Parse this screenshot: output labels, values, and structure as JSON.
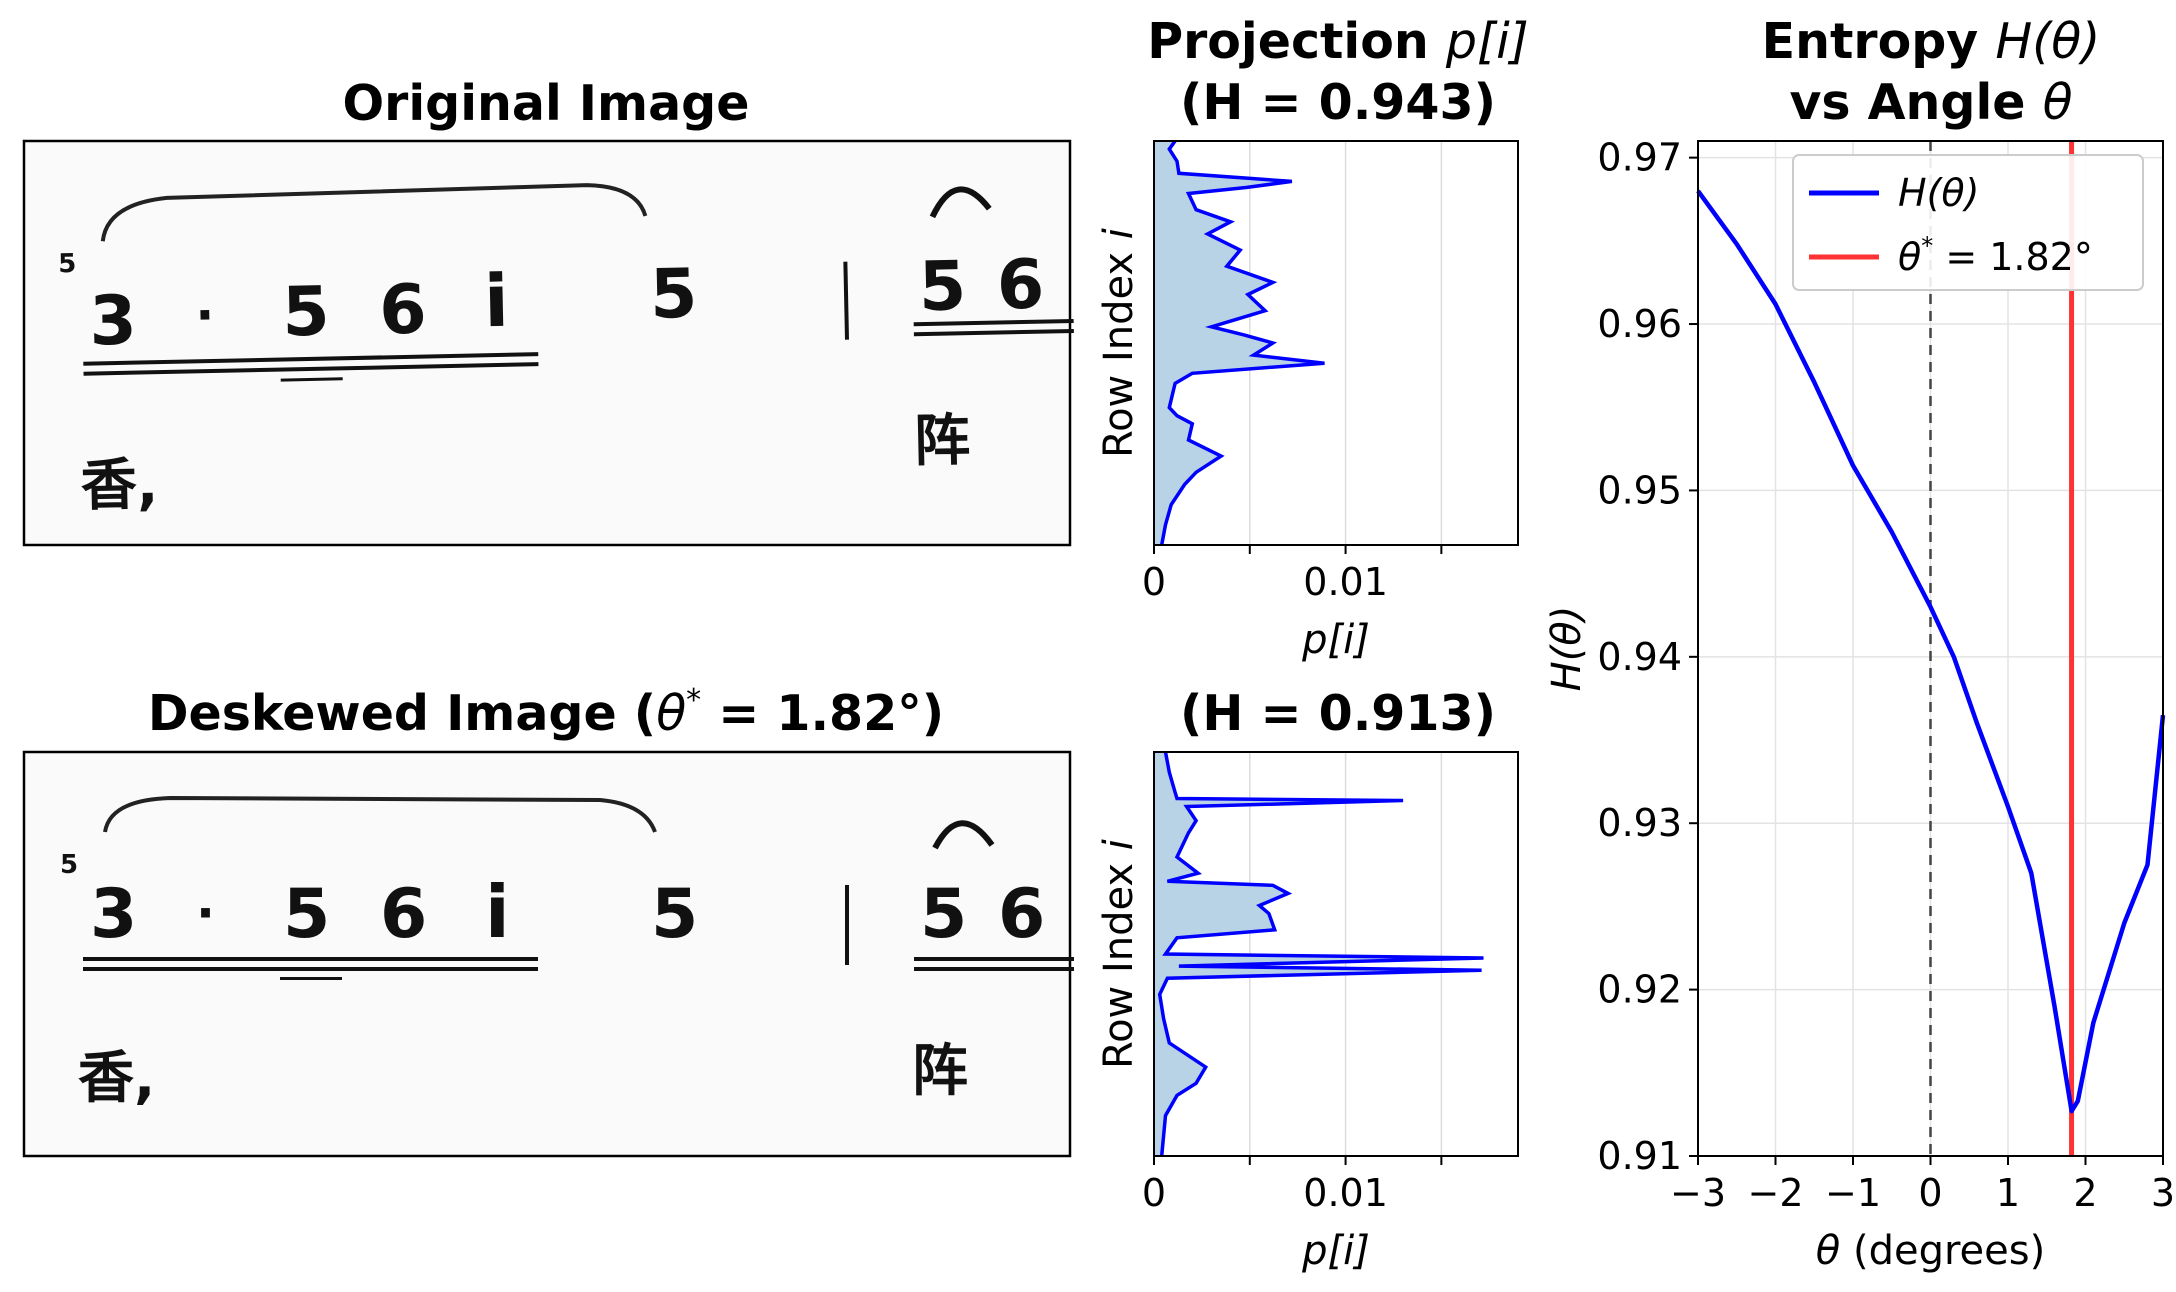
{
  "panels": {
    "original": {
      "title": "Original Image"
    },
    "deskewed": {
      "title_prefix": "Deskewed Image (",
      "title_theta": "θ",
      "title_star": "*",
      "title_suffix": " = 1.82°)"
    },
    "score": {
      "notes_top": [
        "5",
        "3",
        "·",
        "5",
        "6",
        "i",
        "5",
        "5",
        "6"
      ],
      "lyrics": [
        "香,",
        "阵"
      ]
    }
  },
  "chart_data": [
    {
      "type": "area",
      "title_line1_prefix": "Projection ",
      "title_line1_math": "p[i]",
      "title_line2": "(H = 0.943)",
      "xlabel": "p[i]",
      "ylabel": "Row Index i",
      "xticks": [
        "0",
        "0.01"
      ],
      "xlim": [
        0,
        0.019
      ],
      "grid": true,
      "profile": [
        [
          0.0,
          0.0011
        ],
        [
          0.02,
          0.0008
        ],
        [
          0.05,
          0.0012
        ],
        [
          0.08,
          0.0013
        ],
        [
          0.1,
          0.0072
        ],
        [
          0.115,
          0.0048
        ],
        [
          0.13,
          0.0018
        ],
        [
          0.17,
          0.0022
        ],
        [
          0.2,
          0.004
        ],
        [
          0.23,
          0.0028
        ],
        [
          0.27,
          0.0045
        ],
        [
          0.31,
          0.0038
        ],
        [
          0.35,
          0.0062
        ],
        [
          0.38,
          0.0049
        ],
        [
          0.42,
          0.0058
        ],
        [
          0.46,
          0.003
        ],
        [
          0.48,
          0.0047
        ],
        [
          0.5,
          0.0062
        ],
        [
          0.53,
          0.0052
        ],
        [
          0.55,
          0.0089
        ],
        [
          0.575,
          0.002
        ],
        [
          0.6,
          0.0011
        ],
        [
          0.66,
          0.0008
        ],
        [
          0.68,
          0.0012
        ],
        [
          0.7,
          0.002
        ],
        [
          0.74,
          0.0018
        ],
        [
          0.78,
          0.0035
        ],
        [
          0.82,
          0.0022
        ],
        [
          0.85,
          0.0016
        ],
        [
          0.9,
          0.0009
        ],
        [
          0.95,
          0.0006
        ],
        [
          1.0,
          0.0004
        ]
      ]
    },
    {
      "type": "area",
      "title": "(H = 0.913)",
      "xlabel": "p[i]",
      "ylabel": "Row Index i",
      "xticks": [
        "0",
        "0.01"
      ],
      "xlim": [
        0,
        0.019
      ],
      "grid": true,
      "profile": [
        [
          0.0,
          0.0006
        ],
        [
          0.05,
          0.0008
        ],
        [
          0.1,
          0.0011
        ],
        [
          0.115,
          0.0012
        ],
        [
          0.12,
          0.013
        ],
        [
          0.135,
          0.0017
        ],
        [
          0.17,
          0.0022
        ],
        [
          0.2,
          0.0018
        ],
        [
          0.26,
          0.0012
        ],
        [
          0.3,
          0.0023
        ],
        [
          0.32,
          0.0007
        ],
        [
          0.33,
          0.0062
        ],
        [
          0.35,
          0.007
        ],
        [
          0.38,
          0.0055
        ],
        [
          0.4,
          0.006
        ],
        [
          0.44,
          0.0063
        ],
        [
          0.46,
          0.0012
        ],
        [
          0.5,
          0.0006
        ],
        [
          0.51,
          0.0172
        ],
        [
          0.53,
          0.0013
        ],
        [
          0.54,
          0.0171
        ],
        [
          0.56,
          0.0007
        ],
        [
          0.6,
          0.0003
        ],
        [
          0.66,
          0.0005
        ],
        [
          0.72,
          0.0008
        ],
        [
          0.78,
          0.0027
        ],
        [
          0.82,
          0.0022
        ],
        [
          0.85,
          0.0012
        ],
        [
          0.9,
          0.0006
        ],
        [
          0.95,
          0.0005
        ],
        [
          1.0,
          0.0004
        ]
      ]
    },
    {
      "type": "line",
      "title_line1_prefix": "Entropy ",
      "title_line1_math": "H(θ)",
      "title_line2_prefix": "vs Angle ",
      "title_line2_math": "θ",
      "xlabel_math": "θ",
      "xlabel_text": " (degrees)",
      "ylabel": "H(θ)",
      "xlim": [
        -3,
        3
      ],
      "ylim": [
        0.91,
        0.971
      ],
      "xticks": [
        -3,
        -2,
        -1,
        0,
        1,
        2,
        3
      ],
      "xtick_labels": [
        "−3",
        "−2",
        "−1",
        "0",
        "1",
        "2",
        "3"
      ],
      "yticks": [
        0.91,
        0.92,
        0.93,
        0.94,
        0.95,
        0.96,
        0.97
      ],
      "ytick_labels": [
        "0.91",
        "0.92",
        "0.93",
        "0.94",
        "0.95",
        "0.96",
        "0.97"
      ],
      "grid": true,
      "legend_position": "top-right",
      "series": [
        {
          "name": "H(θ)",
          "color": "#0000ff",
          "x": [
            -3.0,
            -2.5,
            -2.0,
            -1.5,
            -1.0,
            -0.5,
            0.0,
            0.3,
            0.6,
            1.0,
            1.3,
            1.6,
            1.82,
            1.9,
            2.1,
            2.5,
            2.8,
            3.0
          ],
          "y": [
            0.968,
            0.9648,
            0.9612,
            0.9565,
            0.9515,
            0.9475,
            0.943,
            0.94,
            0.936,
            0.931,
            0.927,
            0.919,
            0.9127,
            0.9133,
            0.918,
            0.924,
            0.9275,
            0.9365
          ]
        }
      ],
      "reference_lines": [
        {
          "name": "θ* = 1.82°",
          "x": 1.82,
          "color": "#ff3333",
          "style": "solid"
        },
        {
          "x": 0,
          "color": "#444444",
          "style": "dashed"
        }
      ],
      "legend": [
        {
          "label_math": "H(θ)",
          "color": "#0000ff"
        },
        {
          "label_prefix": "θ",
          "label_sup": "*",
          "label_suffix": " = 1.82°",
          "color": "#ff3333"
        }
      ]
    }
  ]
}
